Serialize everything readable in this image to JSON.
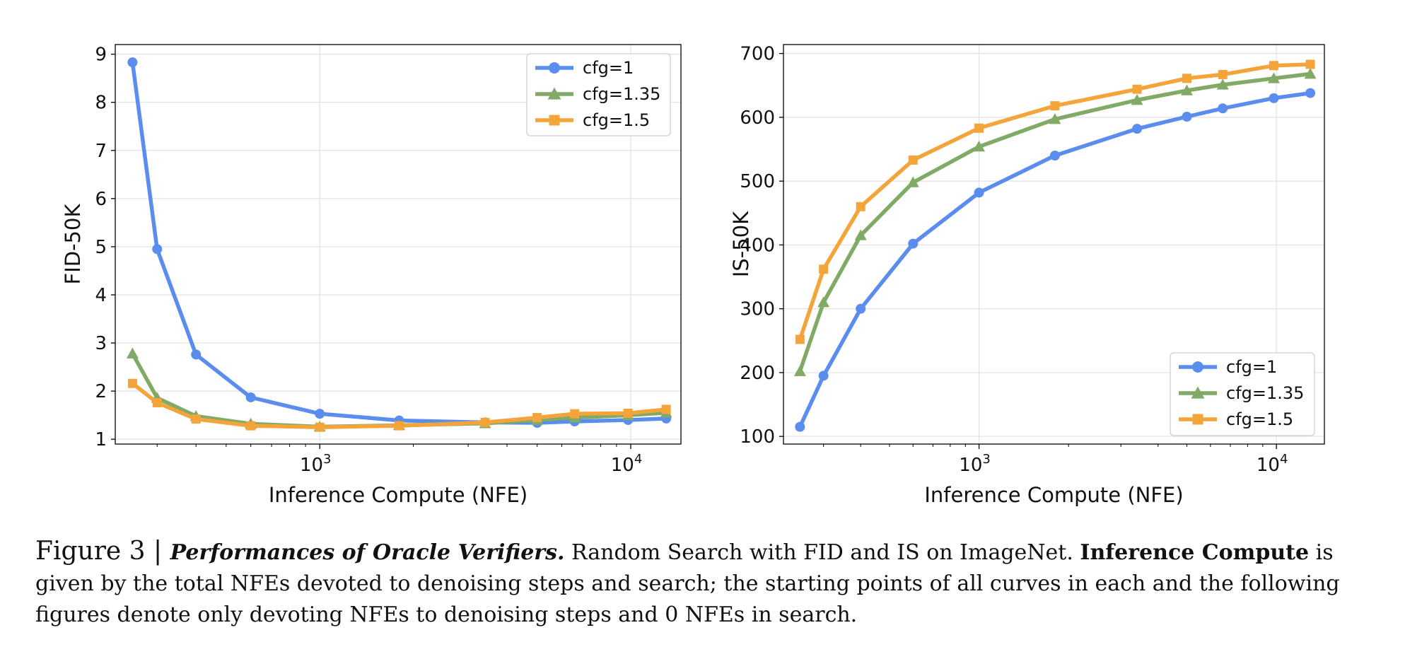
{
  "chart_data": [
    {
      "type": "line",
      "ylabel": "FID-50K",
      "xlabel": "Inference Compute (NFE)",
      "xscale": "log",
      "xlim": [
        220,
        14500
      ],
      "ylim": [
        0.9,
        9.2
      ],
      "yticks": [
        1,
        2,
        3,
        4,
        5,
        6,
        7,
        8,
        9
      ],
      "xticks": [
        {
          "value": 1000,
          "base": "10",
          "exp": "3"
        },
        {
          "value": 10000,
          "base": "10",
          "exp": "4"
        }
      ],
      "legend_position": "top-right",
      "grid": true,
      "series": [
        {
          "name": "cfg=1",
          "color": "#5b8def",
          "marker": "circle",
          "x": [
            250,
            300,
            400,
            600,
            1000,
            1800,
            3400,
            5000,
            6600,
            9800,
            13000
          ],
          "y": [
            8.83,
            4.95,
            2.76,
            1.87,
            1.53,
            1.39,
            1.35,
            1.34,
            1.37,
            1.4,
            1.43
          ]
        },
        {
          "name": "cfg=1.35",
          "color": "#82aa67",
          "marker": "triangle",
          "x": [
            250,
            300,
            400,
            600,
            1000,
            1800,
            3400,
            5000,
            6600,
            9800,
            13000
          ],
          "y": [
            2.78,
            1.86,
            1.48,
            1.32,
            1.26,
            1.29,
            1.33,
            1.4,
            1.45,
            1.5,
            1.55
          ]
        },
        {
          "name": "cfg=1.5",
          "color": "#f3a53b",
          "marker": "square",
          "x": [
            250,
            300,
            400,
            600,
            1000,
            1800,
            3400,
            5000,
            6600,
            9800,
            13000
          ],
          "y": [
            2.16,
            1.76,
            1.42,
            1.28,
            1.25,
            1.28,
            1.35,
            1.45,
            1.53,
            1.54,
            1.62
          ]
        }
      ]
    },
    {
      "type": "line",
      "ylabel": "IS-50K",
      "xlabel": "Inference Compute (NFE)",
      "xscale": "log",
      "xlim": [
        220,
        14500
      ],
      "ylim": [
        88,
        714
      ],
      "yticks": [
        100,
        200,
        300,
        400,
        500,
        600,
        700
      ],
      "xticks": [
        {
          "value": 1000,
          "base": "10",
          "exp": "3"
        },
        {
          "value": 10000,
          "base": "10",
          "exp": "4"
        }
      ],
      "legend_position": "bottom-right",
      "grid": true,
      "series": [
        {
          "name": "cfg=1",
          "color": "#5b8def",
          "marker": "circle",
          "x": [
            250,
            300,
            400,
            600,
            1000,
            1800,
            3400,
            5000,
            6600,
            9800,
            13000
          ],
          "y": [
            115,
            195,
            300,
            402,
            482,
            540,
            582,
            601,
            614,
            630,
            638
          ]
        },
        {
          "name": "cfg=1.35",
          "color": "#82aa67",
          "marker": "triangle",
          "x": [
            250,
            300,
            400,
            600,
            1000,
            1800,
            3400,
            5000,
            6600,
            9800,
            13000
          ],
          "y": [
            202,
            310,
            415,
            498,
            554,
            597,
            627,
            642,
            651,
            661,
            668
          ]
        },
        {
          "name": "cfg=1.5",
          "color": "#f3a53b",
          "marker": "square",
          "x": [
            250,
            300,
            400,
            600,
            1000,
            1800,
            3400,
            5000,
            6600,
            9800,
            13000
          ],
          "y": [
            252,
            362,
            460,
            533,
            583,
            618,
            644,
            661,
            667,
            681,
            683
          ]
        }
      ]
    }
  ],
  "caption": {
    "figure_label": "Figure 3",
    "separator": " | ",
    "title": "Performances of Oracle Verifiers.",
    "sentence1": " Random Search with FID and IS on ImageNet. ",
    "bold_term": "Inference Compute",
    "rest": " is given by the total NFEs devoted to denoising steps and search; the starting points of all curves in each and the following figures denote only devoting NFEs to denoising steps and 0 NFEs in search."
  }
}
